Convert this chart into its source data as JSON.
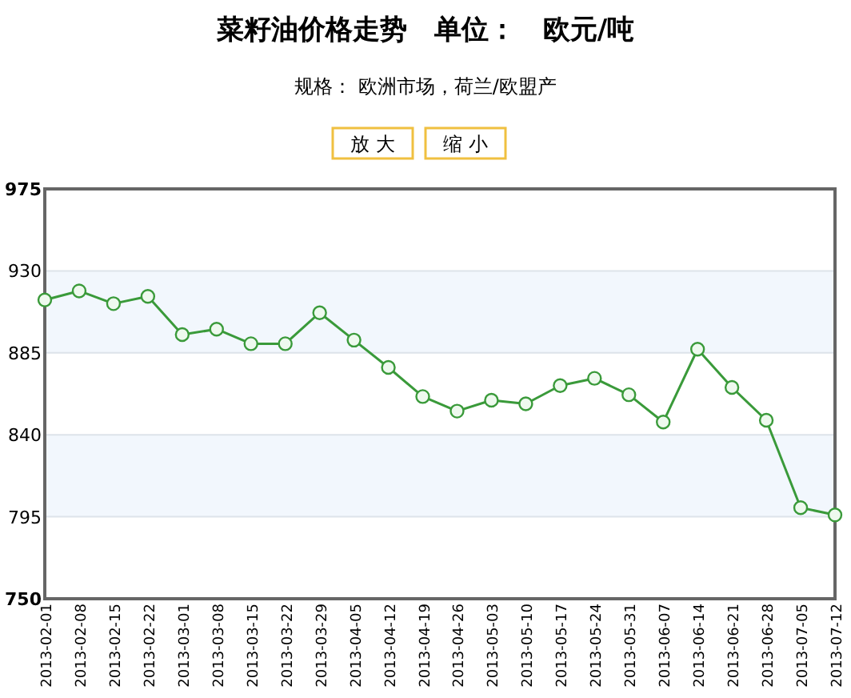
{
  "chart_data": {
    "type": "line",
    "title": "菜籽油价格走势　单位：　欧元/吨",
    "subtitle": "规格： 欧洲市场，荷兰/欧盟产",
    "annotations": [
      "放 大",
      "缩 小"
    ],
    "categories": [
      "2013-02-01",
      "2013-02-08",
      "2013-02-15",
      "2013-02-22",
      "2013-03-01",
      "2013-03-08",
      "2013-03-15",
      "2013-03-22",
      "2013-03-29",
      "2013-04-05",
      "2013-04-12",
      "2013-04-19",
      "2013-04-26",
      "2013-05-03",
      "2013-05-10",
      "2013-05-17",
      "2013-05-24",
      "2013-05-31",
      "2013-06-07",
      "2013-06-14",
      "2013-06-21",
      "2013-06-28",
      "2013-07-05",
      "2013-07-12"
    ],
    "series": [
      {
        "color": "#3a9a3a",
        "values": [
          914,
          919,
          912,
          916,
          895,
          898,
          890,
          890,
          907,
          892,
          877,
          861,
          853,
          859,
          857,
          867,
          871,
          862,
          847,
          887,
          866,
          848,
          800,
          796
        ]
      }
    ],
    "ylim": [
      750,
      975
    ],
    "yticks": [
      750,
      795,
      840,
      885,
      930,
      975
    ],
    "bands": [
      {
        "axis": "y",
        "from": 885,
        "to": 930,
        "color": "#f2f7fd"
      },
      {
        "axis": "y",
        "from": 795,
        "to": 840,
        "color": "#f2f7fd"
      }
    ],
    "grid": "y",
    "marker": "circle"
  }
}
